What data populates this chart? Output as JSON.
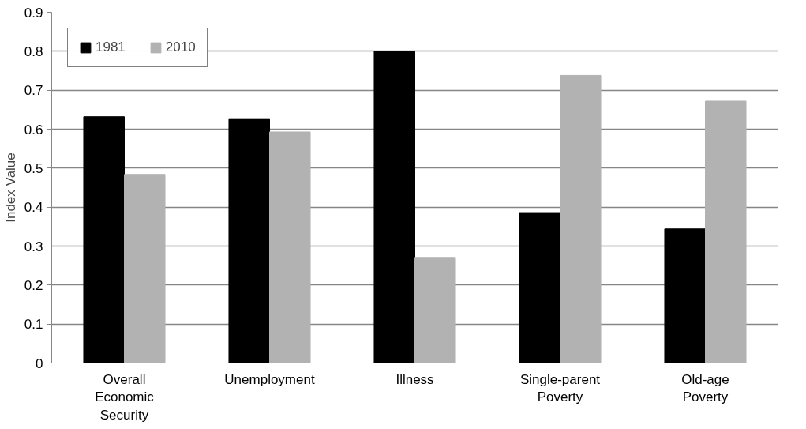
{
  "chart_data": {
    "type": "bar",
    "ylabel": "Index Value",
    "categories": [
      "Overall Economic Security",
      "Unemployment",
      "Illness",
      "Single-parent Poverty",
      "Old-age Poverty"
    ],
    "series": [
      {
        "name": "1981",
        "color": "#000000",
        "values": [
          0.632,
          0.627,
          0.8,
          0.386,
          0.344
        ]
      },
      {
        "name": "2010",
        "color": "#b2b2b2",
        "values": [
          0.484,
          0.593,
          0.271,
          0.738,
          0.672
        ]
      }
    ],
    "ylim": [
      0,
      0.9
    ],
    "yticks": [
      0,
      0.1,
      0.2,
      0.3,
      0.4,
      0.5,
      0.6,
      0.7,
      0.8,
      0.9
    ],
    "grid": "y",
    "legend": "top left"
  }
}
